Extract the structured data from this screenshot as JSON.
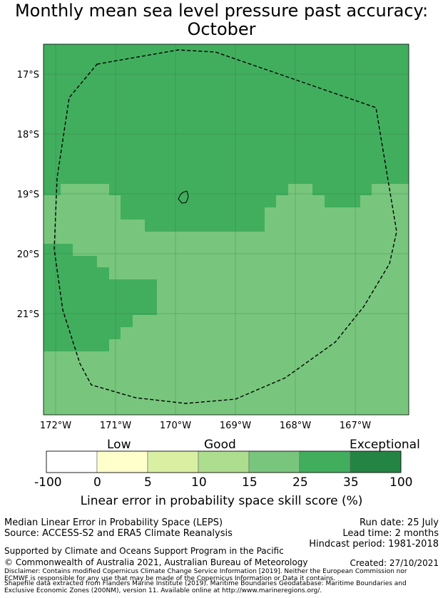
{
  "title_line1": "Monthly mean sea level pressure past accuracy:",
  "title_line2": "October",
  "map": {
    "lat_ticks": [
      "17°S",
      "18°S",
      "19°S",
      "20°S",
      "21°S"
    ],
    "lon_ticks": [
      "172°W",
      "171°W",
      "170°W",
      "169°W",
      "168°W",
      "167°W"
    ],
    "colors": {
      "band_25_35": "#41ae5e",
      "band_15_25": "#78c67d"
    }
  },
  "colorbar": {
    "category_low": "Low",
    "category_good": "Good",
    "category_exceptional": "Exceptional",
    "ticks": [
      "-100",
      "0",
      "5",
      "10",
      "15",
      "25",
      "35",
      "100"
    ],
    "colors": [
      "#ffffff",
      "#ffffcc",
      "#d9f0a3",
      "#addd8e",
      "#78c67d",
      "#41ae5e",
      "#238443"
    ],
    "label": "Linear error in probability space skill score (%)"
  },
  "footer": {
    "method": "Median Linear Error in Probability Space (LEPS)",
    "source": "Source: ACCESS-S2 and ERA5 Climate Reanalysis",
    "run_date": "Run date: 25 July",
    "lead_time": "Lead time: 2 months",
    "hindcast": "Hindcast period: 1981-2018",
    "support": "Supported by Climate and Oceans Support Program in the Pacific",
    "copyright": "© Commonwealth of Australia 2021, Australian Bureau of Meteorology",
    "created": "Created: 27/10/2021",
    "disclaimer1": "Disclaimer: Contains modified Copernicus Climate Change Service Information [2019]. Neither the European Commission nor",
    "disclaimer2": "ECMWF is responsible for any use that may be made of the Copernicus Information or Data it contains.",
    "shapefile1": "Shapefile data extracted from Flanders Marine Institute (2019). Maritime Boundaries Geodatabase: Maritime Boundaries and",
    "shapefile2": "Exclusive Economic Zones (200NM), version 11. Available online at http://www.marineregions.org/."
  }
}
